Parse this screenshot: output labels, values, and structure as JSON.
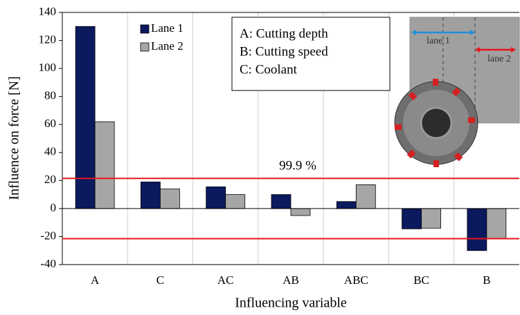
{
  "chart_data": {
    "type": "bar",
    "xlabel": "Influencing variable",
    "ylabel": "Influence on force [N]",
    "categories": [
      "A",
      "C",
      "AC",
      "AB",
      "ABC",
      "BC",
      "B"
    ],
    "series": [
      {
        "name": "Lane 1",
        "color": "#0b1a5e",
        "values": [
          130,
          19,
          15.5,
          10,
          5,
          -14.5,
          -30
        ]
      },
      {
        "name": "Lane 2",
        "color": "#a6a6a6",
        "values": [
          62,
          14,
          10,
          -5,
          17,
          -14,
          -21.5
        ]
      }
    ],
    "ylim": [
      -40,
      140
    ],
    "yticks": [
      -40,
      -20,
      0,
      20,
      40,
      60,
      80,
      100,
      120,
      140
    ],
    "grid": "x",
    "thresholds": {
      "values": [
        21.5,
        -21.5
      ],
      "label": "99.9 %",
      "color": "#e8141c"
    },
    "factor_legend": [
      "A: Cutting depth",
      "B: Cutting speed",
      "C: Coolant"
    ],
    "inset_labels": [
      "lane 1",
      "lane 2"
    ]
  }
}
